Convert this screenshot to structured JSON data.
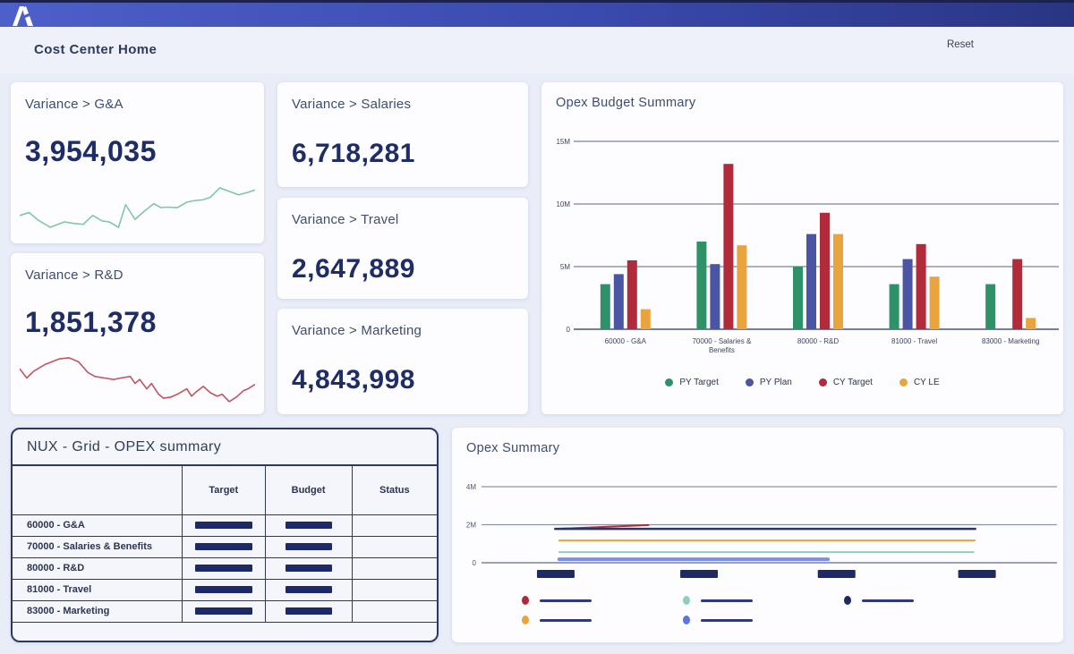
{
  "header": {
    "title": "Cost Center Home",
    "reset_label": "Reset"
  },
  "kpis": [
    {
      "title": "Variance > G&A",
      "value": "3,954,035",
      "trend_color": "#7fc7a5"
    },
    {
      "title": "Variance > R&D",
      "value": "1,851,378",
      "trend_color": "#c05560"
    },
    {
      "title": "Variance > Salaries",
      "value": "6,718,281"
    },
    {
      "title": "Variance > Travel",
      "value": "2,647,889"
    },
    {
      "title": "Variance > Marketing",
      "value": "4,843,998"
    }
  ],
  "grid": {
    "title": "NUX - Grid - OPEX summary",
    "columns": [
      "Target",
      "Budget",
      "Status"
    ],
    "rows": [
      {
        "label": "60000 - G&A",
        "target": "redacted-bar",
        "budget": "redacted-bar",
        "status": ""
      },
      {
        "label": "70000 - Salaries & Benefits",
        "target": "redacted-bar",
        "budget": "redacted-bar",
        "status": ""
      },
      {
        "label": "80000 - R&D",
        "target": "redacted-bar",
        "budget": "redacted-bar",
        "status": ""
      },
      {
        "label": "81000 - Travel",
        "target": "redacted-bar",
        "budget": "redacted-bar",
        "status": ""
      },
      {
        "label": "83000 - Marketing",
        "target": "redacted-bar",
        "budget": "redacted-bar",
        "status": ""
      }
    ]
  },
  "chart_data": [
    {
      "id": "opex_budget_summary",
      "type": "bar",
      "title": "Opex Budget Summary",
      "categories": [
        "60000 - G&A",
        "70000 - Salaries & Benefits",
        "80000 - R&D",
        "81000 - Travel",
        "83000 - Marketing"
      ],
      "series": [
        {
          "name": "PY Target",
          "color": "#2f9168",
          "values": [
            3.6,
            7.0,
            5.0,
            3.6,
            3.6
          ]
        },
        {
          "name": "PY Plan",
          "color": "#4a55a3",
          "values": [
            4.4,
            5.2,
            7.6,
            5.6,
            0
          ]
        },
        {
          "name": "CY Target",
          "color": "#b12b3b",
          "values": [
            5.5,
            13.2,
            9.3,
            6.8,
            5.6
          ]
        },
        {
          "name": "CY LE",
          "color": "#e9a43e",
          "values": [
            1.6,
            6.7,
            7.6,
            4.2,
            0.9
          ]
        }
      ],
      "unit": "M",
      "ylim": [
        0,
        15
      ],
      "yticks": [
        {
          "value": 0,
          "label": "0"
        },
        {
          "value": 5,
          "label": "5M"
        },
        {
          "value": 10,
          "label": "10M"
        },
        {
          "value": 15,
          "label": "15M"
        }
      ],
      "grid": true,
      "legend_position": "bottom"
    },
    {
      "id": "opex_summary",
      "type": "line",
      "title": "Opex Summary",
      "ylim": [
        0,
        4.7
      ],
      "yticks": [
        {
          "value": 0,
          "label": "0"
        },
        {
          "value": 2,
          "label": "2M"
        },
        {
          "value": 4,
          "label": "4M"
        }
      ],
      "grid": true,
      "x_tick_labels_redacted": true,
      "x_tick_positions": [
        0.129,
        0.378,
        0.617,
        0.861
      ],
      "series": [
        {
          "label_redacted": true,
          "color": "#b02a37",
          "width": 2,
          "points": [
            [
              0.128,
              1.78
            ],
            [
              0.29,
              1.98
            ]
          ]
        },
        {
          "label_redacted": true,
          "color": "#2b3566",
          "width": 2.5,
          "points": [
            [
              0.128,
              1.78
            ],
            [
              0.858,
              1.78
            ]
          ]
        },
        {
          "label_redacted": true,
          "color": "#e8a33d",
          "width": 2,
          "points": [
            [
              0.135,
              1.17
            ],
            [
              0.857,
              1.17
            ]
          ]
        },
        {
          "label_redacted": true,
          "color": "#8fd0b4",
          "width": 2,
          "points": [
            [
              0.135,
              0.56
            ],
            [
              0.855,
              0.56
            ]
          ]
        },
        {
          "label_redacted": true,
          "color": "#7c8fe6",
          "width": 4,
          "points": [
            [
              0.135,
              0.18
            ],
            [
              0.602,
              0.18
            ]
          ]
        }
      ],
      "legend": [
        {
          "color": "#b02a37",
          "label_redacted": true
        },
        {
          "color": "#8fd0b4",
          "label_redacted": true
        },
        {
          "color": "#1d2a5e",
          "label_redacted": true
        },
        {
          "color": "#e9a43e",
          "label_redacted": true
        },
        {
          "color": "#5b74e0",
          "label_redacted": true
        }
      ],
      "legend_position": "bottom"
    },
    {
      "id": "gna_trend_sparkline",
      "type": "line",
      "color": "#7fc7a5",
      "points": [
        [
          0,
          33
        ],
        [
          4,
          39
        ],
        [
          8,
          23
        ],
        [
          13,
          9
        ],
        [
          19,
          20
        ],
        [
          23,
          17
        ],
        [
          27,
          15
        ],
        [
          31,
          33
        ],
        [
          35,
          22
        ],
        [
          38,
          20
        ],
        [
          42,
          9
        ],
        [
          45,
          55
        ],
        [
          49,
          25
        ],
        [
          53,
          42
        ],
        [
          57,
          57
        ],
        [
          60,
          49
        ],
        [
          62,
          50
        ],
        [
          67,
          49
        ],
        [
          71,
          60
        ],
        [
          74,
          63
        ],
        [
          78,
          65
        ],
        [
          81,
          70
        ],
        [
          85,
          89
        ],
        [
          89,
          82
        ],
        [
          93,
          75
        ],
        [
          97,
          80
        ],
        [
          100,
          85
        ]
      ]
    },
    {
      "id": "rnd_trend_sparkline",
      "type": "line",
      "color": "#c05560",
      "points": [
        [
          0,
          69
        ],
        [
          3,
          50
        ],
        [
          6,
          64
        ],
        [
          11,
          78
        ],
        [
          17,
          89
        ],
        [
          21,
          91
        ],
        [
          25,
          83
        ],
        [
          29,
          61
        ],
        [
          32,
          53
        ],
        [
          36,
          50
        ],
        [
          40,
          47
        ],
        [
          43,
          50
        ],
        [
          47,
          53
        ],
        [
          49,
          39
        ],
        [
          51,
          47
        ],
        [
          54,
          28
        ],
        [
          56,
          39
        ],
        [
          59,
          17
        ],
        [
          61,
          9
        ],
        [
          64,
          11
        ],
        [
          67,
          17
        ],
        [
          71,
          28
        ],
        [
          73,
          13
        ],
        [
          75,
          22
        ],
        [
          78,
          33
        ],
        [
          81,
          20
        ],
        [
          84,
          13
        ],
        [
          86,
          17
        ],
        [
          89,
          2
        ],
        [
          92,
          11
        ],
        [
          95,
          24
        ],
        [
          97,
          28
        ],
        [
          100,
          37
        ]
      ]
    }
  ]
}
